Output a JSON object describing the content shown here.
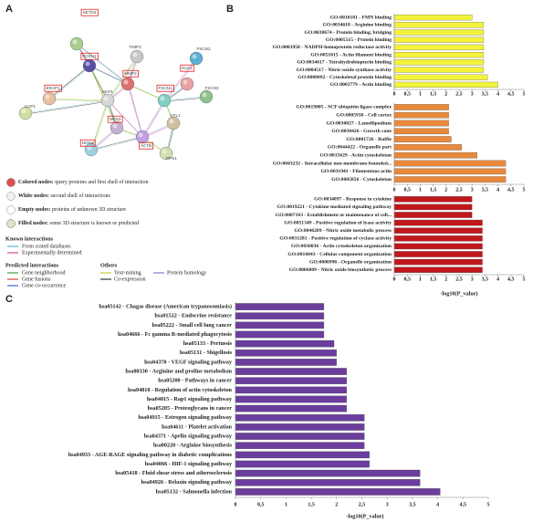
{
  "panels": {
    "a": "A",
    "b": "B",
    "c": "C"
  },
  "panel_a": {
    "nodes": [
      "SETD3",
      "FOXN1",
      "TIMP2",
      "KLC4",
      "FSCN2",
      "ERAP1",
      "MMP2",
      "FSCN3",
      "FSCN1",
      "MAT1",
      "CAP1",
      "NOS3",
      "NOS2",
      "ACTB",
      "CFL1",
      "PFN1"
    ],
    "legend": {
      "node_types": [
        {
          "term": "Colored nodes:",
          "desc": "query proteins and first shell of interaction"
        },
        {
          "term": "White nodes:",
          "desc": "second shell of interactions"
        },
        {
          "term": "Empty nodes:",
          "desc": "proteins of unknown 3D structure"
        },
        {
          "term": "Filled nodes:",
          "desc": "some 3D structure is known or predicted"
        }
      ],
      "known_title": "Known interactions",
      "known": [
        "From crated databases",
        "Experimentally determined"
      ],
      "predicted_title": "Predicted interactions",
      "predicted": [
        "Gene neighborhood",
        "Gene fusions",
        "Gene co-occurrence"
      ],
      "others_title": "Others",
      "others": [
        "Text-mining",
        "Co-expression",
        "Protein homology"
      ]
    }
  },
  "chart_data": [
    {
      "type": "bar",
      "orientation": "horizontal",
      "color": "#f3f33c",
      "categories": [
        "GO:0010181 - FMN binding",
        "GO:0034618 - Arginine binding",
        "GO:0030674 - Protein binding, bridging",
        "GO:0005515 - Protein binding",
        "GO:0003958 - NADPH-hemoprotein reductase activity",
        "GO:0051015 - Actin filament binding",
        "GO:0034617 - Tetrahydrobiopterin binding",
        "GO:0004517 - Nitric-oxide synthase activity",
        "GO:0008092 - Cytoskeletal protein binding",
        "GO:0003779 - Actin binding"
      ],
      "values": [
        3.0,
        3.45,
        3.45,
        3.45,
        3.45,
        3.45,
        3.45,
        3.45,
        3.6,
        4.0
      ],
      "xlim": [
        0,
        5
      ],
      "xticks": [
        0,
        {
          "value": 0.5,
          "label": "0,5"
        },
        1,
        {
          "value": 1.5,
          "label": "1,5"
        },
        2,
        {
          "value": 2.5,
          "label": "2,5"
        },
        3,
        {
          "value": 3.5,
          "label": "3,5"
        },
        4,
        {
          "value": 4.5,
          "label": "4,5"
        },
        5
      ]
    },
    {
      "type": "bar",
      "orientation": "horizontal",
      "color": "#e8893c",
      "categories": [
        "GO:0019005 - SCF ubiquitin ligase complex",
        "GO:0005938 - Cell cortex",
        "GO:0030027 - Lamellipodium",
        "GO:0030426 - Growth cone",
        "GO:0001726 - Ruffle",
        "GO:0044422 - Organelle part",
        "GO:0015629 - Actin cytoskeleton",
        "GO:0043232 - Intracellular non-membrane-bounded...",
        "GO:0031941 - Filamentous actin",
        "GO:0005856 - Cytoskeleton"
      ],
      "values": [
        2.1,
        2.1,
        2.1,
        2.1,
        2.2,
        2.6,
        3.2,
        4.3,
        4.3,
        4.3
      ],
      "xlim": [
        0,
        5
      ],
      "xticks": [
        0,
        {
          "value": 0.5,
          "label": "0,5"
        },
        1,
        {
          "value": 1.5,
          "label": "1,5"
        },
        2,
        {
          "value": 2.5,
          "label": "2,5"
        },
        3,
        {
          "value": 3.5,
          "label": "3,5"
        },
        4,
        {
          "value": 4.5,
          "label": "4,5"
        },
        5
      ]
    },
    {
      "type": "bar",
      "orientation": "horizontal",
      "color": "#c0171b",
      "categories": [
        "GO:0034097 - Response to cytokine",
        "GO:0019221 - Cytokine-mediated signaling pathway",
        "GO:0007163 - Establishment or maintenance of cell...",
        "GO:0051349 - Positive regulation of lyase activity",
        "GO:0046209 - Nitric oxide metabolic process",
        "GO:0031281 - Positive regulation of cyclase activity",
        "GO:0030036 - Actin cytoskeleton organization",
        "GO:0016043 - Cellular component organization",
        "GO:0006996 - Organelle organization",
        "GO:0006809 - Nitric oxide biosynthetic process"
      ],
      "values": [
        3.0,
        3.0,
        3.0,
        3.4,
        3.4,
        3.4,
        3.4,
        3.4,
        3.4,
        3.4
      ],
      "xlim": [
        0,
        5
      ],
      "xticks": [
        0,
        {
          "value": 0.5,
          "label": "0,5"
        },
        1,
        {
          "value": 1.5,
          "label": "1,5"
        },
        2,
        {
          "value": 2.5,
          "label": "2,5"
        },
        3,
        {
          "value": 3.5,
          "label": "3,5"
        },
        4,
        {
          "value": 4.5,
          "label": "4,5"
        },
        5
      ],
      "xlabel": "-log10(P_value)"
    },
    {
      "type": "bar",
      "orientation": "horizontal",
      "color": "#6b3d9c",
      "categories": [
        "hsa05142 - Chagas disease (American trypanosomiasis)",
        "hsa01522 - Endocrine resistance",
        "hsa05222 - Small cell lung cancer",
        "hsa04666 - Fc gamma R-mediated phagocytosis",
        "hsa05133 - Pertussis",
        "hsa05131 - Shigellosis",
        "hsa04370 - VEGF signaling pathway",
        "hsa00330 - Arginine and proline metabolism",
        "hsa05200 - Pathways in cancer",
        "hsa04810 - Regulation of actin cytoskeleton",
        "hsa04015 - Rap1 signaling pathway",
        "hsa05205 - Proteoglycans in cancer",
        "hsa04915 - Estrogen signaling pathway",
        "hsa04611 - Platelet activation",
        "hsa04371 - Apelin signaling pathway",
        "hsa00220 - Arginine biosynthesis",
        "hsa04933 - AGE-RAGE signaling pathway in diabetic complications",
        "hsa04066 - HIF-1 signaling pathway",
        "hsa05418 - Fluid shear stress and atherosclerosis",
        "hsa04926 - Relaxin signaling pathway",
        "hsa05132 - Salmonella infection"
      ],
      "values": [
        1.75,
        1.75,
        1.75,
        1.75,
        1.95,
        2.0,
        2.0,
        2.2,
        2.2,
        2.2,
        2.2,
        2.2,
        2.55,
        2.55,
        2.55,
        2.55,
        2.65,
        2.65,
        3.65,
        3.65,
        4.05
      ],
      "xlim": [
        0,
        5
      ],
      "xticks": [
        0,
        {
          "value": 0.5,
          "label": "0,5"
        },
        1,
        {
          "value": 1.5,
          "label": "1,5"
        },
        2,
        {
          "value": 2.5,
          "label": "2,5"
        },
        3,
        {
          "value": 3.5,
          "label": "3,5"
        },
        4,
        {
          "value": 4.5,
          "label": "4,5"
        },
        5
      ],
      "xlabel": "-log10(P_value)"
    }
  ]
}
